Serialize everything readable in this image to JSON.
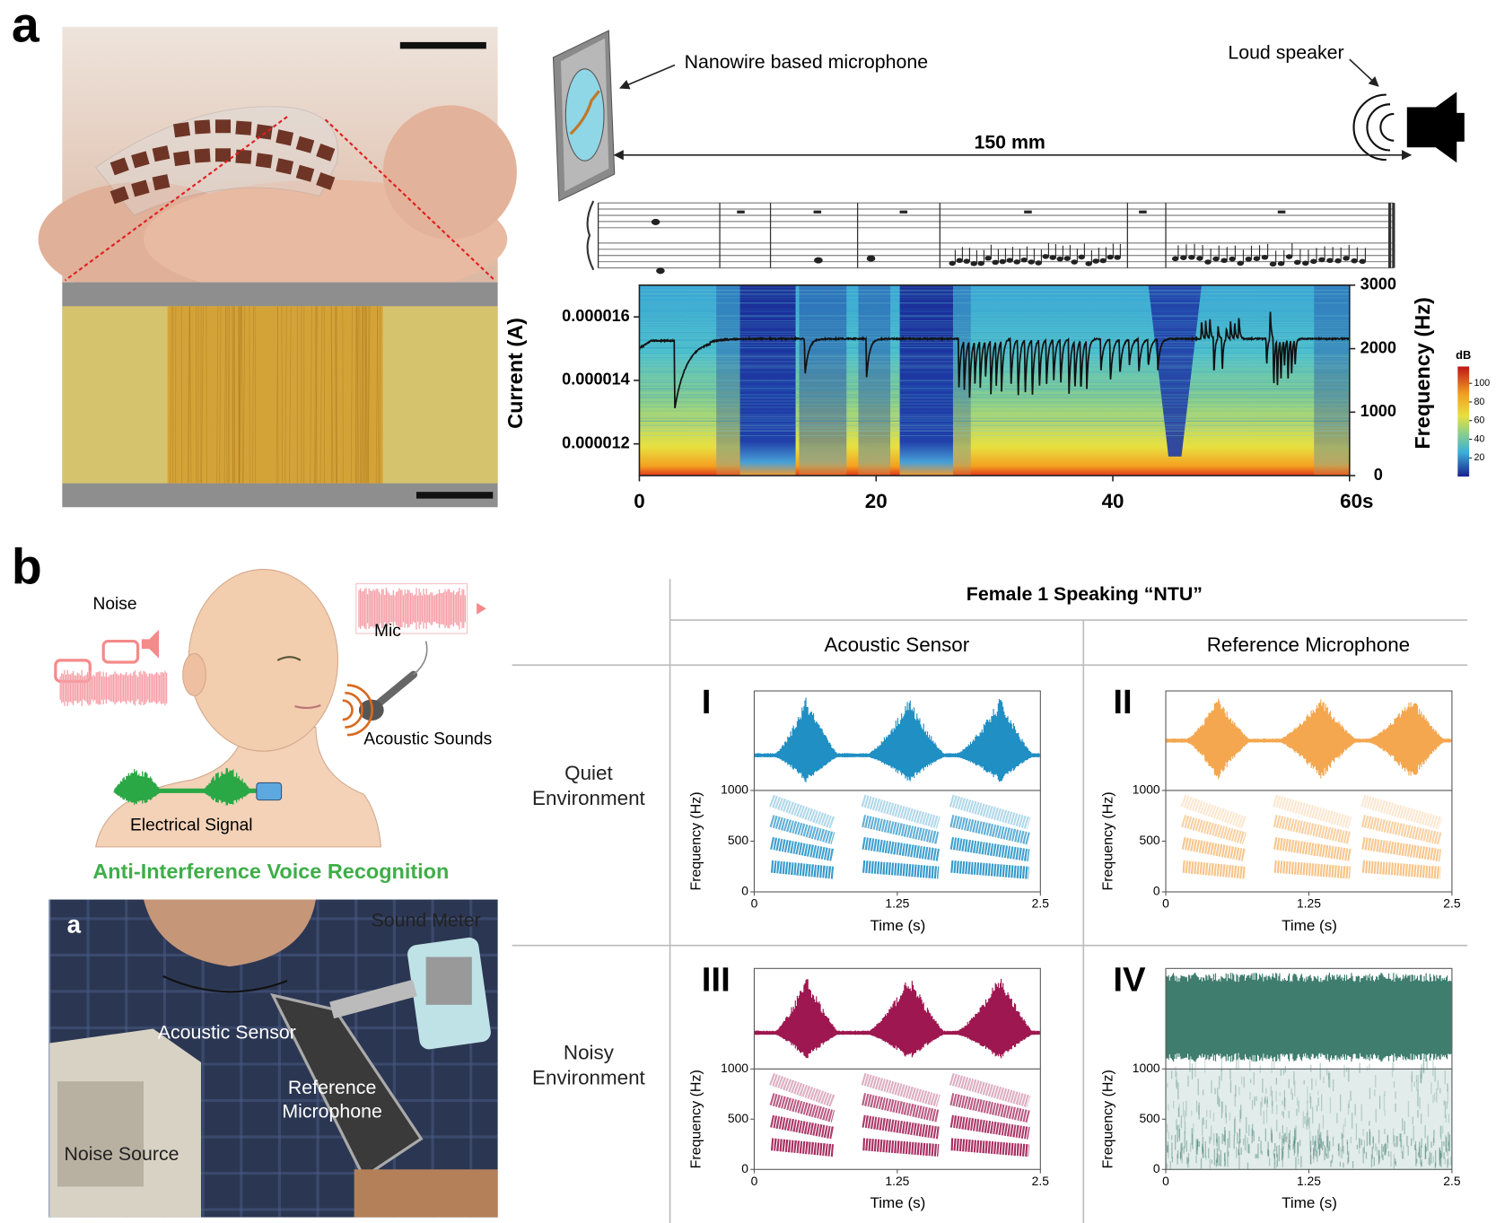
{
  "panel_a": {
    "label": "a",
    "microphone_label": "Nanowire based microphone",
    "speaker_label": "Loud speaker",
    "distance": "150 mm",
    "chart": {
      "type": "line",
      "y_label": "Current (A)",
      "y2_label": "Frequency (Hz)",
      "xlim": [
        0,
        60
      ],
      "xticks": [
        0,
        20,
        40,
        {
          "value": 60,
          "label": "60s"
        }
      ],
      "ylim": [
        1.1e-05,
        1.7e-05
      ],
      "yticks": [
        1.2e-05,
        1.4e-05,
        1.6e-05
      ],
      "y2lim": [
        0,
        3000
      ],
      "y2ticks": [
        0,
        1000,
        2000,
        3000
      ],
      "colorbar": {
        "label": "dB",
        "lim": [
          0,
          118
        ],
        "ticks": [
          20,
          40,
          60,
          80,
          100
        ]
      }
    }
  },
  "panel_b": {
    "label": "b",
    "illustration": {
      "noise": "Noise",
      "mic": "Mic",
      "acoustic_sounds": "Acoustic Sounds",
      "electrical_signal": "Electrical Signal",
      "caption": "Anti-Interference Voice Recognition"
    },
    "photo": {
      "label": "a",
      "sound_meter": "Sound Meter",
      "acoustic_sensor": "Acoustic Sensor",
      "reference_microphone": "Reference Microphone",
      "noise_source": "Noise Source"
    },
    "table": {
      "title": "Female 1 Speaking “NTU”",
      "columns": [
        "Acoustic Sensor",
        "Reference Microphone"
      ],
      "rows": [
        "Quiet Environment",
        "Noisy Environment"
      ],
      "panels": [
        {
          "label": "I",
          "color": "#1f8fc4"
        },
        {
          "label": "II",
          "color": "#f4a74f"
        },
        {
          "label": "III",
          "color": "#9e1750"
        },
        {
          "label": "IV",
          "color": "#3f7d6f"
        }
      ],
      "axes": {
        "x_label": "Time (s)",
        "y_label": "Frequency (Hz)",
        "xlim": [
          0,
          2.5
        ],
        "xticks": [
          0,
          1.25,
          2.5
        ],
        "ylim": [
          0,
          1000
        ],
        "yticks": [
          0,
          500,
          1000
        ]
      }
    }
  }
}
